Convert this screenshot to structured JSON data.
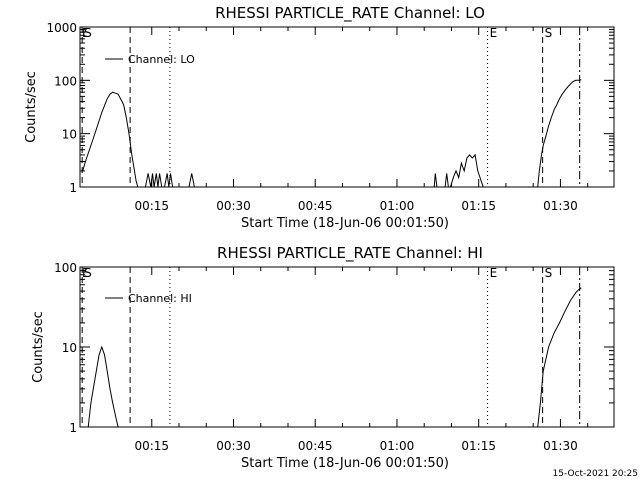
{
  "footer_stamp": "15-Oct-2021 20:25",
  "chart_data": [
    {
      "type": "line",
      "title": "RHESSI PARTICLE_RATE Channel: LO",
      "xlabel": "Start Time (18-Jun-06 00:01:50)",
      "ylabel": "Counts/sec",
      "y_scale": "log",
      "ylim": [
        1,
        1000
      ],
      "xlim_minutes": [
        0,
        98
      ],
      "x_ticks": [
        {
          "label": "00:15",
          "min": 13.17
        },
        {
          "label": "00:30",
          "min": 28.17
        },
        {
          "label": "00:45",
          "min": 43.17
        },
        {
          "label": "01:00",
          "min": 58.17
        },
        {
          "label": "01:15",
          "min": 73.17
        },
        {
          "label": "01:30",
          "min": 88.17
        }
      ],
      "y_ticks": [
        {
          "label": "1",
          "value": 1
        },
        {
          "label": "10",
          "value": 10
        },
        {
          "label": "100",
          "value": 100
        },
        {
          "label": "1000",
          "value": 1000
        }
      ],
      "legend": {
        "label": "Channel: LO",
        "placement": "top-left"
      },
      "markers": [
        {
          "label": "E",
          "min": 0,
          "style": "dashed"
        },
        {
          "label": "S",
          "min": 0.4,
          "style": "dashed"
        },
        {
          "label": "",
          "min": 9.2,
          "style": "dashed"
        },
        {
          "label": "",
          "min": 16.5,
          "style": "dotted"
        },
        {
          "label": "E",
          "min": 74.8,
          "style": "dotted"
        },
        {
          "label": "S",
          "min": 84.9,
          "style": "dashed"
        },
        {
          "label": "",
          "min": 91.7,
          "style": "dashdot"
        }
      ],
      "series": [
        {
          "x": [
            0.5,
            1,
            2,
            3,
            4,
            5,
            5.5,
            6,
            7,
            8,
            8.5,
            9,
            9.5,
            10,
            10.3,
            10.6,
            11,
            12,
            12.5,
            13,
            13.3,
            13.6,
            14,
            14.3,
            14.6,
            15,
            15.5,
            16,
            16.3,
            16.6,
            17,
            18,
            19,
            20,
            20.5,
            21,
            22,
            40,
            60,
            65,
            65.2,
            65.5,
            66,
            67,
            67.3,
            67.6,
            68,
            68.5,
            69,
            69.5,
            70,
            70.5,
            71,
            71.5,
            72,
            72.5,
            73,
            74,
            84,
            84.3,
            84.7,
            85,
            85.5,
            86,
            86.5,
            87,
            87.5,
            88,
            88.5,
            89,
            89.5,
            90,
            90.5,
            91,
            91.5,
            91.7,
            92
          ],
          "y": [
            2,
            3,
            6,
            12,
            25,
            45,
            55,
            60,
            55,
            35,
            20,
            10,
            4,
            2,
            1.3,
            1,
            1,
            1,
            1.8,
            1,
            1.8,
            1,
            1.8,
            1,
            1.8,
            1,
            1,
            1.8,
            1,
            1.8,
            1,
            1,
            1,
            1,
            1.8,
            1,
            1,
            1,
            1,
            1,
            1.8,
            1,
            1,
            1,
            1.8,
            1,
            1,
            1.5,
            2,
            1.5,
            2.8,
            2,
            3.5,
            4,
            3.5,
            4,
            2,
            1,
            1,
            2,
            4,
            6,
            9,
            14,
            20,
            28,
            35,
            45,
            55,
            65,
            75,
            85,
            95,
            100,
            100,
            102,
            102
          ]
        }
      ]
    },
    {
      "type": "line",
      "title": "RHESSI PARTICLE_RATE Channel: HI",
      "xlabel": "Start Time (18-Jun-06 00:01:50)",
      "ylabel": "Counts/sec",
      "y_scale": "log",
      "ylim": [
        1,
        100
      ],
      "xlim_minutes": [
        0,
        98
      ],
      "x_ticks": [
        {
          "label": "00:15",
          "min": 13.17
        },
        {
          "label": "00:30",
          "min": 28.17
        },
        {
          "label": "00:45",
          "min": 43.17
        },
        {
          "label": "01:00",
          "min": 58.17
        },
        {
          "label": "01:15",
          "min": 73.17
        },
        {
          "label": "01:30",
          "min": 88.17
        }
      ],
      "y_ticks": [
        {
          "label": "1",
          "value": 1
        },
        {
          "label": "10",
          "value": 10
        },
        {
          "label": "100",
          "value": 100
        }
      ],
      "legend": {
        "label": "Channel: HI",
        "placement": "top-left"
      },
      "markers": [
        {
          "label": "E",
          "min": 0,
          "style": "dashed"
        },
        {
          "label": "S",
          "min": 0.4,
          "style": "dashed"
        },
        {
          "label": "",
          "min": 9.2,
          "style": "dashed"
        },
        {
          "label": "",
          "min": 16.5,
          "style": "dotted"
        },
        {
          "label": "E",
          "min": 74.8,
          "style": "dotted"
        },
        {
          "label": "S",
          "min": 84.9,
          "style": "dashed"
        },
        {
          "label": "",
          "min": 91.7,
          "style": "dashdot"
        }
      ],
      "series": [
        {
          "x": [
            1.5,
            2,
            3,
            3.5,
            4,
            4.5,
            5,
            5.5,
            6,
            6.5,
            7,
            84,
            84.5,
            85,
            86,
            87,
            88,
            89,
            90,
            91,
            91.5,
            92
          ],
          "y": [
            1,
            2,
            5,
            8,
            10,
            8,
            5,
            3,
            2,
            1.4,
            1,
            1,
            2,
            5,
            10,
            15,
            20,
            28,
            38,
            48,
            52,
            55
          ]
        }
      ]
    }
  ]
}
